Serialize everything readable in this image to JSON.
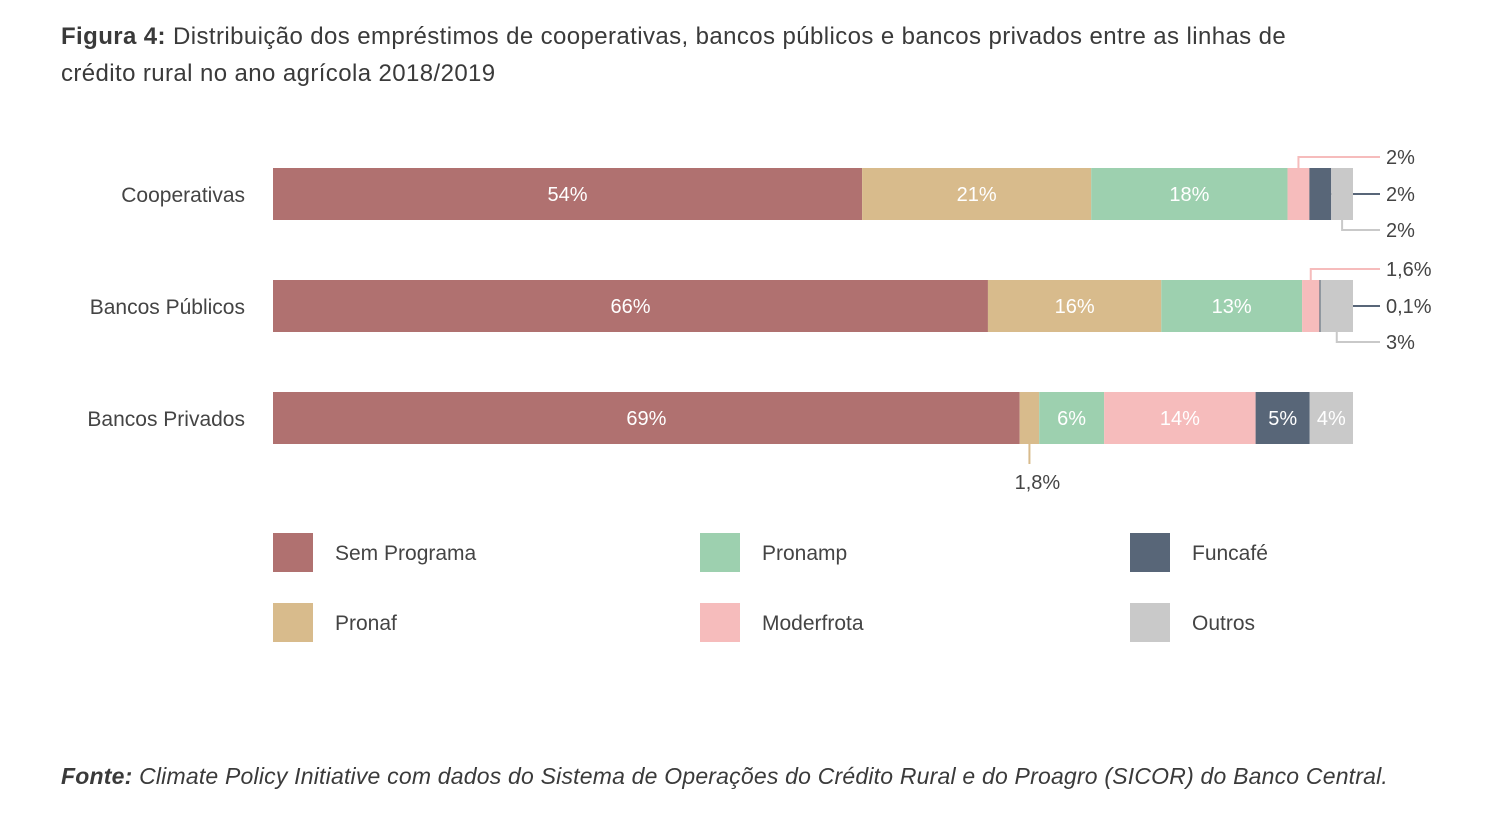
{
  "figure": {
    "label": "Figura 4:",
    "title": "Distribuição dos empréstimos de cooperativas, bancos públicos e bancos privados entre as linhas de crédito rural no ano agrícola 2018/2019"
  },
  "source": {
    "label": "Fonte:",
    "text": "Climate Policy Initiative com dados do Sistema de Operações do Crédito Rural e do Proagro (SICOR) do Banco Central."
  },
  "chart_data": {
    "type": "bar",
    "orientation": "horizontal",
    "stacked": true,
    "normalized": true,
    "categories": [
      "Cooperativas",
      "Bancos Públicos",
      "Bancos Privados"
    ],
    "series": [
      {
        "name": "Sem Programa",
        "color": "#b07170",
        "values": [
          54,
          66,
          69
        ],
        "labels": [
          "54%",
          "66%",
          "69%"
        ]
      },
      {
        "name": "Pronaf",
        "color": "#d8bb8c",
        "values": [
          21,
          16,
          1.8
        ],
        "labels": [
          "21%",
          "16%",
          "1,8%"
        ]
      },
      {
        "name": "Pronamp",
        "color": "#9dd0af",
        "values": [
          18,
          13,
          6
        ],
        "labels": [
          "18%",
          "13%",
          "6%"
        ]
      },
      {
        "name": "Moderfrota",
        "color": "#f6bcbc",
        "values": [
          2,
          1.6,
          14
        ],
        "labels": [
          "2%",
          "1,6%",
          "14%"
        ]
      },
      {
        "name": "Funcafé",
        "color": "#586678",
        "values": [
          2,
          0.1,
          5
        ],
        "labels": [
          "2%",
          "0,1%",
          "5%"
        ]
      },
      {
        "name": "Outros",
        "color": "#c9c9c9",
        "values": [
          2,
          3,
          4
        ],
        "labels": [
          "2%",
          "3%",
          "4%"
        ]
      }
    ],
    "label_placement": [
      [
        "inside",
        "inside",
        "inside",
        "callout-top",
        "callout-middle",
        "callout-bottom"
      ],
      [
        "inside",
        "inside",
        "inside",
        "callout-top",
        "callout-middle",
        "callout-bottom"
      ],
      [
        "inside",
        "callout-below",
        "inside",
        "inside",
        "inside",
        "inside"
      ]
    ],
    "legend_placement": "bottom",
    "grid": false,
    "axes_visible": false
  }
}
